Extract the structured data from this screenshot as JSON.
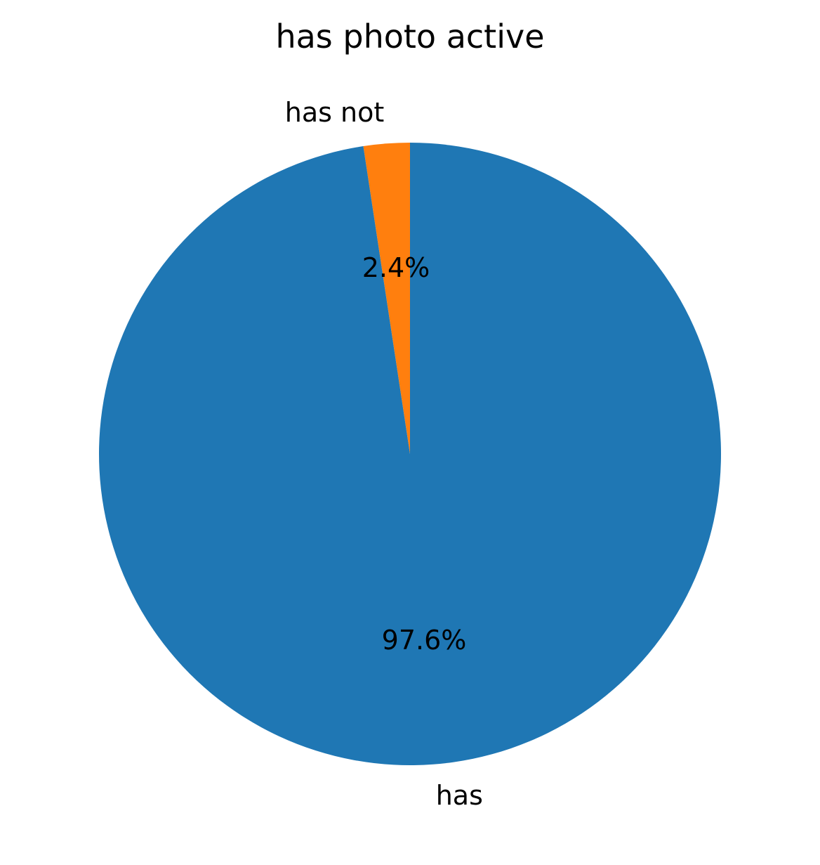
{
  "chart_data": {
    "type": "pie",
    "title": "has photo active",
    "slices": [
      {
        "label": "has not",
        "value": 2.4,
        "pct_label": "2.4%",
        "color": "#ff7f0e"
      },
      {
        "label": "has",
        "value": 97.6,
        "pct_label": "97.6%",
        "color": "#1f77b4"
      }
    ],
    "start_angle": 90,
    "direction": "counterclockwise"
  }
}
